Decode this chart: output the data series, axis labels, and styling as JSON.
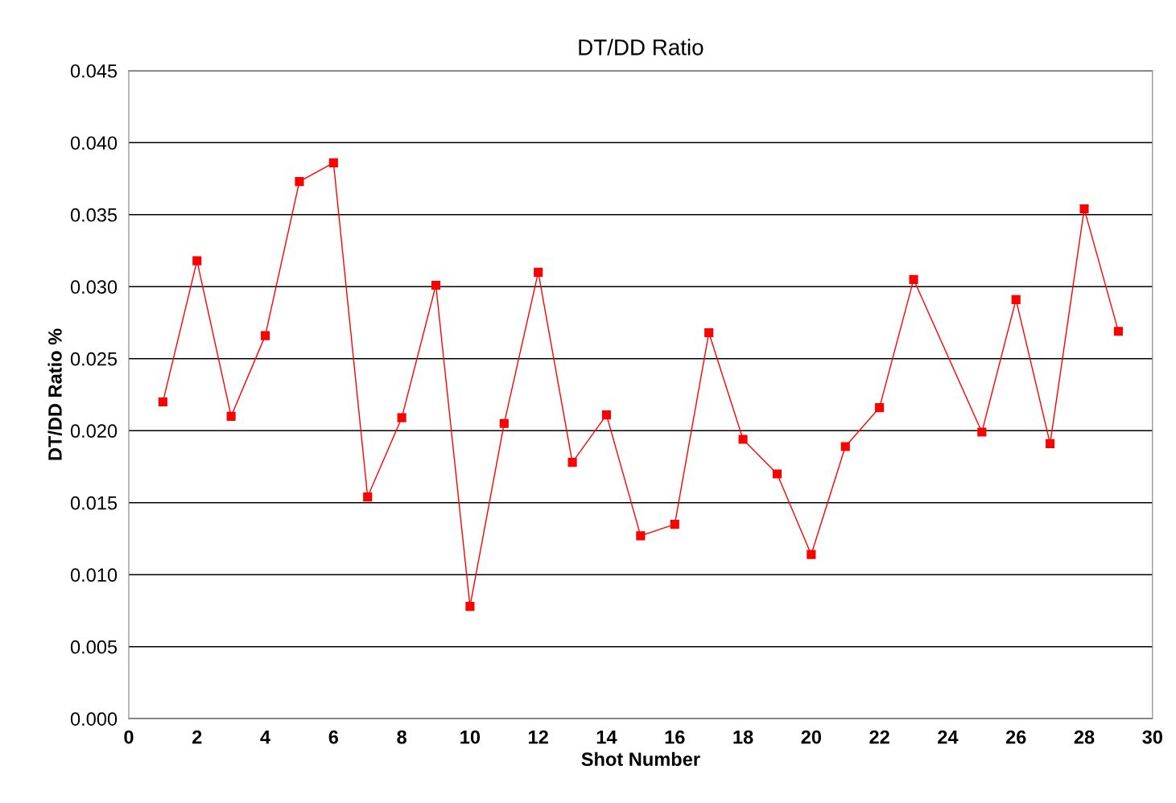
{
  "chart_data": {
    "type": "line",
    "title": "DT/DD Ratio",
    "xlabel": "Shot Number",
    "ylabel": "DT/DD Ratio %",
    "x": [
      1,
      2,
      3,
      4,
      5,
      6,
      7,
      8,
      9,
      10,
      11,
      12,
      13,
      14,
      15,
      16,
      17,
      18,
      19,
      20,
      21,
      22,
      23,
      25,
      26,
      27,
      28,
      29
    ],
    "series": [
      {
        "color": "#ff0000",
        "values": [
          0.022,
          0.0318,
          0.021,
          0.0266,
          0.0373,
          0.0386,
          0.0154,
          0.0209,
          0.0301,
          0.0078,
          0.0205,
          0.031,
          0.0178,
          0.0211,
          0.0127,
          0.0135,
          0.0268,
          0.0194,
          0.017,
          0.0114,
          0.0189,
          0.0216,
          0.0305,
          0.0199,
          0.0291,
          0.0191,
          0.0354,
          0.0269
        ]
      }
    ],
    "xlim": [
      0,
      30
    ],
    "xticks": [
      0,
      2,
      4,
      6,
      8,
      10,
      12,
      14,
      16,
      18,
      20,
      22,
      24,
      26,
      28,
      30
    ],
    "ylim": [
      0,
      0.045
    ],
    "yticks": [
      {
        "value": 0,
        "label": "0.000"
      },
      {
        "value": 0.005,
        "label": "0.005"
      },
      {
        "value": 0.01,
        "label": "0.010"
      },
      {
        "value": 0.015,
        "label": "0.015"
      },
      {
        "value": 0.02,
        "label": "0.020"
      },
      {
        "value": 0.025,
        "label": "0.025"
      },
      {
        "value": 0.03,
        "label": "0.030"
      },
      {
        "value": 0.035,
        "label": "0.035"
      },
      {
        "value": 0.04,
        "label": "0.040"
      },
      {
        "value": 0.045,
        "label": "0.045"
      }
    ],
    "grid": "y",
    "marker": "square",
    "line_style": "solid",
    "legend": false
  }
}
